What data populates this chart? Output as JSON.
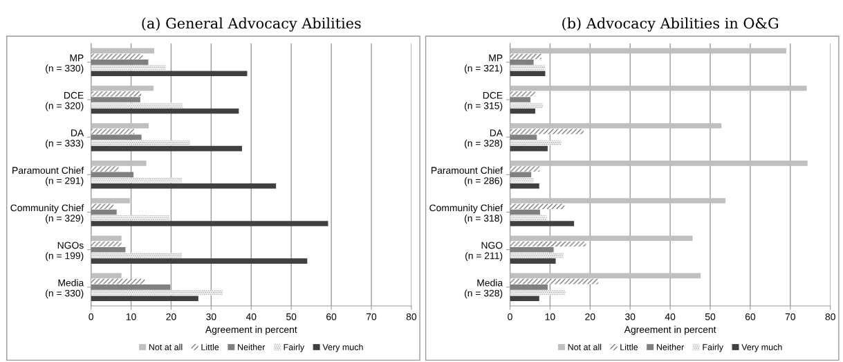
{
  "chart_data": [
    {
      "type": "bar",
      "orientation": "horizontal",
      "title": "(a) General Advocacy Abilities",
      "xlabel": "Agreement in percent",
      "categories": [
        "MP\n(n = 330)",
        "DCE\n(n = 320)",
        "DA\n(n = 333)",
        "Paramount Chief\n(n = 291)",
        "Community Chief\n(n = 329)",
        "NGOs\n(n = 199)",
        "Media\n(n = 330)"
      ],
      "series": [
        {
          "name": "Not at all",
          "color": "#bfbfbf",
          "values": [
            15.8,
            15.6,
            14.4,
            13.8,
            9.7,
            7.6,
            7.6
          ]
        },
        {
          "name": "Little",
          "color": "#595959",
          "values": [
            12.9,
            12.5,
            10.8,
            6.9,
            5.6,
            7.6,
            13.4
          ]
        },
        {
          "name": "Neither",
          "color": "#808080",
          "values": [
            14.3,
            12.3,
            12.6,
            10.6,
            6.4,
            8.6,
            19.8
          ]
        },
        {
          "name": "Fairly",
          "color": "#8c8c8c",
          "values": [
            18.6,
            22.9,
            24.7,
            22.7,
            19.6,
            22.7,
            32.9
          ]
        },
        {
          "name": "Very much",
          "color": "#404040",
          "values": [
            39.0,
            36.9,
            37.7,
            46.2,
            59.2,
            54.0,
            26.8
          ]
        }
      ],
      "xlim": [
        0,
        80
      ],
      "xticks": [
        0,
        10,
        20,
        30,
        40,
        50,
        60,
        70,
        80
      ],
      "grid": "x",
      "legend": "bottom"
    },
    {
      "type": "bar",
      "orientation": "horizontal",
      "title": "(b) Advocacy Abilities in O&G",
      "xlabel": "Agreement in percent",
      "categories": [
        "MP\n(n = 321)",
        "DCE\n(n = 315)",
        "DA\n(n = 328)",
        "Paramount Chief\n(n = 286)",
        "Community Chief\n(n = 318)",
        "NGO\n(n = 211)",
        "Media\n(n = 328)"
      ],
      "series": [
        {
          "name": "Not at all",
          "color": "#bfbfbf",
          "values": [
            69.0,
            74.1,
            52.8,
            74.3,
            53.8,
            45.6,
            47.6
          ]
        },
        {
          "name": "Little",
          "color": "#595959",
          "values": [
            7.8,
            6.3,
            18.4,
            7.4,
            13.6,
            19.0,
            22.0
          ]
        },
        {
          "name": "Neither",
          "color": "#808080",
          "values": [
            5.9,
            5.1,
            6.7,
            5.3,
            7.5,
            10.9,
            9.4
          ]
        },
        {
          "name": "Fairly",
          "color": "#8c8c8c",
          "values": [
            8.8,
            8.2,
            12.8,
            5.9,
            9.2,
            13.3,
            13.8
          ]
        },
        {
          "name": "Very much",
          "color": "#404040",
          "values": [
            8.8,
            6.3,
            9.4,
            7.3,
            16.0,
            11.4,
            7.3
          ]
        }
      ],
      "xlim": [
        0,
        80
      ],
      "xticks": [
        0,
        10,
        20,
        30,
        40,
        50,
        60,
        70,
        80
      ],
      "grid": "x",
      "legend": "bottom"
    }
  ]
}
